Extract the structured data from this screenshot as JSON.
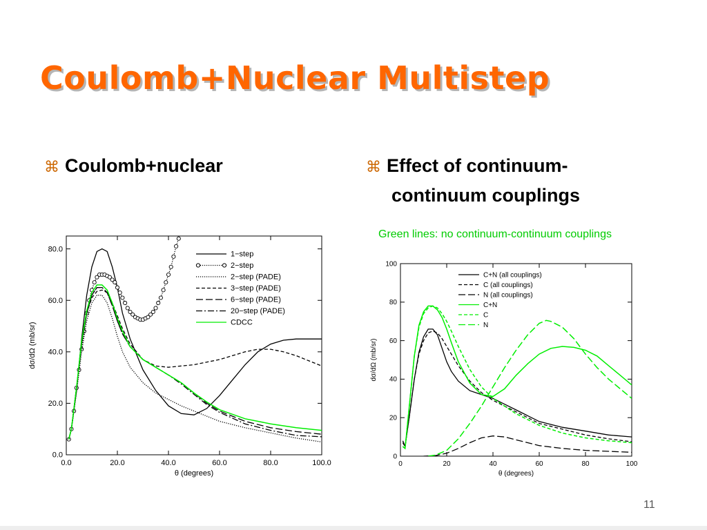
{
  "slide": {
    "title": "Coulomb+Nuclear Multistep",
    "bullet_symbol": "⌘",
    "bullet_left": "Coulomb+nuclear",
    "bullet_right_line1": "Effect of continuum-",
    "bullet_right_line2": "continuum couplings",
    "note": "Green lines: no continuum-continuum couplings",
    "page_number": "11"
  },
  "colors": {
    "title": "#ff6600",
    "green": "#00ee00",
    "black": "#000000"
  },
  "chart_data": [
    {
      "type": "line",
      "xlabel": "θ (degrees)",
      "ylabel": "dσ/dΩ (mb/sr)",
      "xlim": [
        0,
        100
      ],
      "ylim": [
        0,
        85
      ],
      "xticks": [
        0,
        20,
        40,
        60,
        80,
        100
      ],
      "xtick_labels": [
        "0.0",
        "20.0",
        "40.0",
        "60.0",
        "80.0",
        "100.0"
      ],
      "yticks": [
        0,
        20,
        40,
        60,
        80
      ],
      "ytick_labels": [
        "0.0",
        "20.0",
        "40.0",
        "60.0",
        "80.0"
      ],
      "legend_position": "top-right",
      "series": [
        {
          "name": "1−step",
          "style": "solid",
          "color": "#000000",
          "x": [
            1,
            2,
            4,
            6,
            8,
            10,
            12,
            14,
            16,
            18,
            20,
            22,
            25,
            30,
            35,
            40,
            45,
            50,
            55,
            60,
            65,
            70,
            75,
            80,
            85,
            90,
            95,
            100
          ],
          "y": [
            6,
            10,
            25,
            45,
            62,
            73,
            79,
            80,
            79,
            73,
            65,
            55,
            45,
            33,
            25,
            19,
            16,
            15.5,
            18,
            23,
            29,
            35,
            40,
            43,
            44.5,
            45,
            45,
            45
          ]
        },
        {
          "name": "2−step",
          "style": "circles",
          "color": "#000000",
          "x": [
            1,
            2,
            3,
            4,
            5,
            6,
            7,
            8,
            9,
            10,
            11,
            12,
            13,
            14,
            15,
            16,
            17,
            18,
            19,
            20,
            21,
            22,
            23,
            24,
            25,
            26,
            27,
            28,
            29,
            30,
            31,
            32,
            33,
            34,
            35,
            36,
            37,
            38,
            39,
            40,
            41,
            42,
            43,
            44
          ],
          "y": [
            6,
            10,
            17,
            26,
            33,
            41,
            48,
            55,
            60,
            64,
            67,
            69,
            70,
            70,
            70,
            69.5,
            69,
            68,
            67,
            65,
            63,
            61,
            59,
            57,
            55.5,
            54.5,
            53.5,
            53,
            52.5,
            52.5,
            53,
            53.5,
            54.5,
            55.5,
            57,
            59,
            61,
            64,
            67,
            70,
            73,
            77,
            81,
            84
          ]
        },
        {
          "name": "2−step (PADE)",
          "style": "dotted",
          "color": "#000000",
          "x": [
            1,
            2,
            4,
            6,
            8,
            10,
            12,
            14,
            16,
            18,
            20,
            22,
            25,
            30,
            35,
            40,
            45,
            50,
            55,
            60,
            70,
            80,
            90,
            100
          ],
          "y": [
            6,
            10,
            24,
            40,
            52,
            59,
            62,
            62,
            59,
            53,
            46,
            40,
            34,
            28,
            24,
            21.5,
            19,
            17,
            15,
            13,
            10.5,
            8.5,
            6.5,
            5
          ]
        },
        {
          "name": "3−step (PADE)",
          "style": "dashed",
          "color": "#000000",
          "x": [
            1,
            2,
            4,
            6,
            8,
            10,
            12,
            14,
            16,
            18,
            20,
            22,
            25,
            30,
            35,
            40,
            45,
            50,
            55,
            60,
            65,
            70,
            75,
            80,
            85,
            90,
            95,
            100
          ],
          "y": [
            6,
            10,
            26,
            43,
            55,
            61,
            63.5,
            64,
            63,
            59,
            54,
            49,
            43,
            37,
            34.5,
            34,
            34.5,
            35,
            36,
            37,
            38.5,
            40,
            41,
            41,
            40,
            38.5,
            36.5,
            34.5
          ]
        },
        {
          "name": "6−step (PADE)",
          "style": "longdash",
          "color": "#000000",
          "x": [
            1,
            2,
            4,
            6,
            8,
            10,
            12,
            14,
            16,
            18,
            20,
            22,
            25,
            30,
            35,
            40,
            45,
            50,
            55,
            60,
            70,
            80,
            90,
            100
          ],
          "y": [
            6,
            10,
            26,
            43,
            55,
            62,
            65,
            65,
            63,
            58,
            52,
            47,
            42,
            37,
            34,
            31,
            28,
            24,
            20,
            17,
            13,
            10.5,
            9,
            8
          ]
        },
        {
          "name": "20−step (PADE)",
          "style": "dashdot",
          "color": "#000000",
          "x": [
            1,
            2,
            4,
            6,
            8,
            10,
            12,
            14,
            16,
            18,
            20,
            22,
            25,
            30,
            35,
            40,
            45,
            50,
            55,
            60,
            70,
            80,
            90,
            100
          ],
          "y": [
            6,
            10,
            26,
            43,
            55,
            62,
            65,
            65,
            63,
            58,
            52,
            47,
            42,
            37,
            34,
            31,
            27.5,
            23.5,
            19.5,
            16.5,
            12,
            9.5,
            7.5,
            7
          ]
        },
        {
          "name": "CDCC",
          "style": "solid",
          "color": "#00ee00",
          "x": [
            1,
            2,
            4,
            6,
            8,
            10,
            12,
            14,
            16,
            18,
            20,
            22,
            25,
            30,
            35,
            40,
            45,
            50,
            55,
            60,
            70,
            80,
            90,
            100
          ],
          "y": [
            6,
            10,
            26,
            44,
            56,
            63,
            66,
            66,
            64,
            59,
            53,
            48,
            42,
            37,
            34,
            31,
            28,
            24,
            20.5,
            17.5,
            14,
            12,
            10.5,
            9.5
          ]
        }
      ]
    },
    {
      "type": "line",
      "xlabel": "θ (degrees)",
      "ylabel": "dσ/dΩ (mb/sr)",
      "xlim": [
        0,
        100
      ],
      "ylim": [
        0,
        100
      ],
      "xticks": [
        0,
        20,
        40,
        60,
        80,
        100
      ],
      "xtick_labels": [
        "0",
        "20",
        "40",
        "60",
        "80",
        "100"
      ],
      "yticks": [
        0,
        20,
        40,
        60,
        80,
        100
      ],
      "ytick_labels": [
        "0",
        "20",
        "40",
        "60",
        "80",
        "100"
      ],
      "legend_position": "top-left",
      "series": [
        {
          "name": "C+N (all couplings)",
          "style": "solid",
          "color": "#000000",
          "x": [
            1,
            2,
            4,
            6,
            8,
            10,
            12,
            14,
            16,
            18,
            20,
            22,
            25,
            30,
            35,
            40,
            45,
            50,
            55,
            60,
            70,
            80,
            90,
            100
          ],
          "y": [
            8,
            5,
            22,
            40,
            54,
            62,
            66,
            66,
            63,
            56,
            49,
            44,
            39,
            34,
            32,
            30,
            27,
            24,
            21,
            18,
            15,
            13,
            11,
            10
          ]
        },
        {
          "name": "C (all couplings)",
          "style": "dashed",
          "color": "#000000",
          "x": [
            1,
            2,
            4,
            6,
            8,
            10,
            12,
            14,
            16,
            18,
            20,
            22,
            25,
            30,
            35,
            40,
            45,
            50,
            55,
            60,
            70,
            80,
            90,
            100
          ],
          "y": [
            7,
            5,
            22,
            40,
            53,
            60,
            64,
            65,
            64,
            61,
            57,
            53,
            47,
            39,
            33,
            29,
            26,
            23,
            20,
            17,
            14,
            11,
            9,
            7.5
          ]
        },
        {
          "name": "N (all couplings)",
          "style": "longdash",
          "color": "#000000",
          "x": [
            10,
            15,
            20,
            25,
            30,
            35,
            40,
            45,
            50,
            55,
            60,
            70,
            80,
            90,
            100
          ],
          "y": [
            0,
            0.3,
            1.5,
            4,
            7,
            9.5,
            10.5,
            10,
            8.5,
            7,
            5.5,
            4,
            3,
            2.5,
            2
          ]
        },
        {
          "name": "C+N",
          "style": "solid",
          "color": "#00ee00",
          "x": [
            1,
            2,
            4,
            6,
            8,
            10,
            12,
            14,
            16,
            18,
            20,
            22,
            25,
            30,
            35,
            40,
            45,
            50,
            55,
            60,
            65,
            70,
            75,
            80,
            85,
            90,
            95,
            100
          ],
          "y": [
            5,
            4,
            28,
            52,
            68,
            75,
            78,
            78,
            76,
            72,
            66,
            59,
            49,
            38,
            32,
            31,
            35,
            42,
            48,
            53,
            56,
            57,
            56.5,
            55,
            52,
            47,
            42,
            37
          ]
        },
        {
          "name": "C",
          "style": "dashed",
          "color": "#00ee00",
          "x": [
            1,
            2,
            4,
            6,
            8,
            10,
            12,
            14,
            16,
            18,
            20,
            22,
            25,
            30,
            35,
            40,
            45,
            50,
            55,
            60,
            70,
            80,
            90,
            100
          ],
          "y": [
            5,
            4,
            28,
            52,
            67,
            74,
            77,
            78,
            77,
            74,
            70,
            65,
            57,
            45,
            36,
            30,
            26,
            22,
            19,
            16,
            12,
            9.5,
            8,
            7
          ]
        },
        {
          "name": "N",
          "style": "longdash",
          "color": "#00ee00",
          "x": [
            12,
            15,
            20,
            25,
            30,
            35,
            40,
            45,
            50,
            55,
            60,
            63,
            65,
            70,
            75,
            80,
            85,
            90,
            95,
            100
          ],
          "y": [
            0,
            0.5,
            3,
            9,
            17,
            26,
            36,
            46,
            55,
            63,
            69,
            70.5,
            70,
            67,
            61,
            53,
            46,
            40,
            35,
            30
          ]
        }
      ]
    }
  ]
}
